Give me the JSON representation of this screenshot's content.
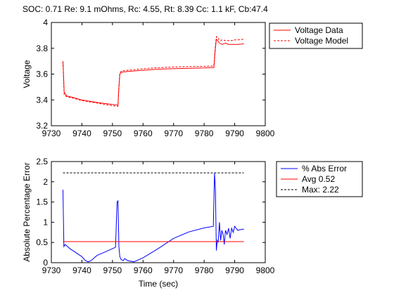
{
  "figure": {
    "title": "SOC: 0.71 Re: 9.1 mOhms, Rc: 4.55, Rt: 8.39 Cc: 1.1 kF, Cb:47.4"
  },
  "chart_data": [
    {
      "type": "line",
      "title": "SOC: 0.71 Re: 9.1 mOhms, Rc: 4.55, Rt: 8.39 Cc: 1.1 kF, Cb:47.4",
      "xlabel": "",
      "ylabel": "Voltage",
      "xlim": [
        9730,
        9800
      ],
      "ylim": [
        3.2,
        4.0
      ],
      "xticks": [
        9730,
        9740,
        9750,
        9760,
        9770,
        9780,
        9790,
        9800
      ],
      "yticks": [
        3.2,
        3.4,
        3.6,
        3.8,
        4.0
      ],
      "ytick_labels": [
        "3.2",
        "3.4",
        "3.6",
        "3.8",
        "4"
      ],
      "grid": false,
      "legend_position": "top-right",
      "series": [
        {
          "name": "Voltage Data",
          "color": "#ff0000",
          "style": "solid",
          "x": [
            9733.8,
            9734.2,
            9735,
            9737,
            9740,
            9745,
            9750,
            9751.8,
            9752.0,
            9752.4,
            9753,
            9755,
            9760,
            9765,
            9770,
            9775,
            9780,
            9782,
            9783.2,
            9783.6,
            9784,
            9784.4,
            9785,
            9786,
            9787,
            9788,
            9789,
            9790,
            9791,
            9792,
            9793
          ],
          "y": [
            3.7,
            3.46,
            3.43,
            3.42,
            3.4,
            3.38,
            3.365,
            3.36,
            3.45,
            3.6,
            3.615,
            3.62,
            3.63,
            3.638,
            3.642,
            3.645,
            3.648,
            3.65,
            3.65,
            3.78,
            3.87,
            3.86,
            3.84,
            3.83,
            3.84,
            3.83,
            3.83,
            3.83,
            3.83,
            3.832,
            3.835
          ]
        },
        {
          "name": "Voltage Model",
          "color": "#ff0000",
          "style": "dashed",
          "x": [
            9733.8,
            9734.2,
            9735,
            9737,
            9740,
            9745,
            9750,
            9751.8,
            9752.0,
            9752.4,
            9753,
            9755,
            9760,
            9765,
            9770,
            9775,
            9780,
            9782,
            9783.2,
            9783.6,
            9784,
            9784.4,
            9785,
            9786,
            9787,
            9788,
            9789,
            9790,
            9791,
            9792,
            9793
          ],
          "y": [
            3.7,
            3.44,
            3.425,
            3.415,
            3.395,
            3.375,
            3.355,
            3.35,
            3.46,
            3.61,
            3.625,
            3.63,
            3.642,
            3.65,
            3.655,
            3.658,
            3.66,
            3.662,
            3.663,
            3.8,
            3.89,
            3.885,
            3.86,
            3.865,
            3.86,
            3.86,
            3.86,
            3.865,
            3.865,
            3.868,
            3.87
          ]
        }
      ]
    },
    {
      "type": "line",
      "title": "",
      "xlabel": "Time (sec)",
      "ylabel": "Absolute Percentage Error",
      "xlim": [
        9730,
        9800
      ],
      "ylim": [
        0,
        2.5
      ],
      "xticks": [
        9730,
        9740,
        9750,
        9760,
        9770,
        9780,
        9790,
        9800
      ],
      "yticks": [
        0,
        0.5,
        1.0,
        1.5,
        2.0,
        2.5
      ],
      "ytick_labels": [
        "0",
        "0.5",
        "1",
        "1.5",
        "2",
        "2.5"
      ],
      "grid": false,
      "legend_position": "top-right",
      "series": [
        {
          "name": "% Abs Error",
          "color": "#0000ff",
          "style": "solid",
          "x": [
            9733.8,
            9734.1,
            9734.5,
            9735,
            9736,
            9738,
            9740,
            9741,
            9742,
            9743,
            9744,
            9745,
            9748,
            9751,
            9751.5,
            9751.8,
            9752.1,
            9752.4,
            9752.8,
            9753.5,
            9754,
            9755,
            9757,
            9760,
            9765,
            9770,
            9775,
            9780,
            9783,
            9783.4,
            9783.7,
            9784,
            9784.3,
            9784.6,
            9785,
            9785.4,
            9785.8,
            9786.2,
            9786.6,
            9787,
            9787.5,
            9788,
            9788.5,
            9789,
            9789.5,
            9790,
            9791,
            9792,
            9793
          ],
          "y": [
            1.8,
            0.4,
            0.45,
            0.42,
            0.35,
            0.25,
            0.15,
            0.06,
            0.02,
            0.05,
            0.12,
            0.18,
            0.28,
            0.38,
            1.5,
            1.53,
            0.4,
            0.15,
            0.08,
            0.05,
            0.1,
            0.05,
            0.02,
            0.12,
            0.35,
            0.6,
            0.76,
            0.86,
            0.9,
            2.22,
            1.8,
            0.3,
            0.55,
            0.5,
            1.0,
            0.55,
            0.8,
            0.7,
            0.45,
            0.8,
            0.7,
            0.85,
            0.6,
            0.85,
            0.75,
            0.9,
            0.8,
            0.82,
            0.83
          ]
        },
        {
          "name": "Avg 0.52",
          "color": "#ff0000",
          "style": "solid",
          "x": [
            9733.8,
            9793
          ],
          "y": [
            0.52,
            0.52
          ]
        },
        {
          "name": "Max: 2.22",
          "color": "#000000",
          "style": "dashed",
          "x": [
            9733.8,
            9793
          ],
          "y": [
            2.22,
            2.22
          ]
        }
      ]
    }
  ]
}
